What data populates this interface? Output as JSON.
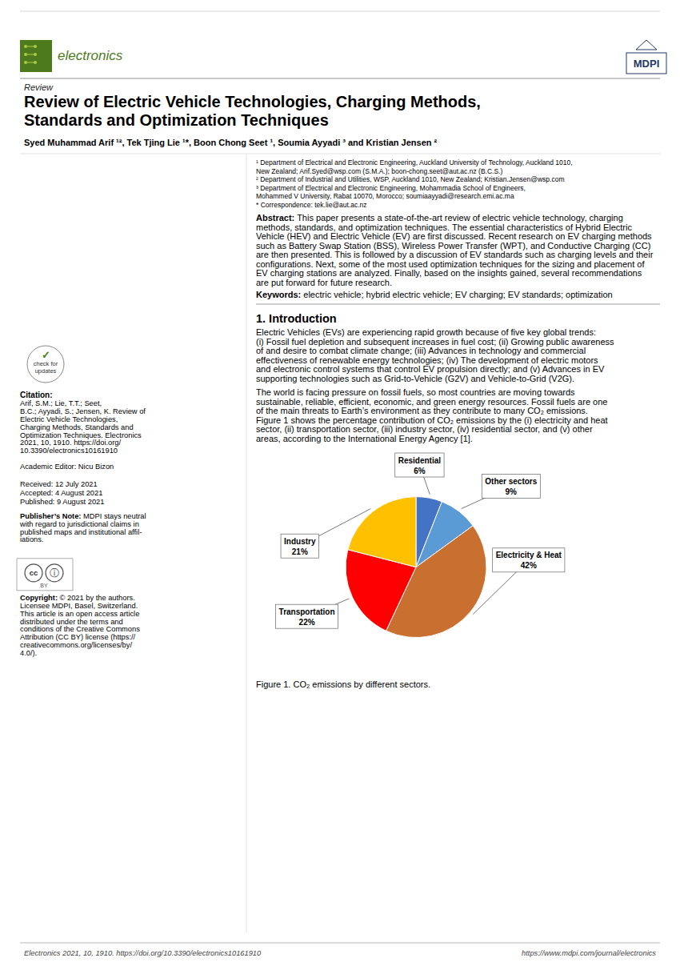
{
  "page": {
    "title_line1": "Review of Electric Vehicle Technologies, Charging Methods,",
    "title_line2": "Standards and Optimization Techniques",
    "review_label": "Review",
    "authors": "Syed Muhammad Arif ¹², Tek Tjing Lie ¹*, Boon Chong Seet ¹, Soumia Ayyadi ³ and Kristian Jensen ²",
    "aff_lines": [
      "¹   Department of Electrical and Electronic Engineering, Auckland University of Technology, Auckland 1010,",
      "     New Zealand; Arif.Syed@wsp.com (S.M.A.); boon-chong.seet@aut.ac.nz (B.C.S.)",
      "²   Department of Industrial and Utilities, WSP, Auckland 1010, New Zealand; Kristian.Jensen@wsp.com",
      "³   Department of Electrical and Electronic Engineering, Mohammadia School of Engineers,",
      "     Mohammed V University, Rabat 10070, Morocco; soumiaayyadi@research.emi.ac.ma",
      "*   Correspondence: tek.lie@aut.ac.nz"
    ],
    "abstract_lines": [
      "Abstract:  This paper presents a state-of-the-art review of electric vehicle technology, charging",
      "methods, standards, and optimization techniques. The essential characteristics of Hybrid Electric",
      "Vehicle (HEV) and Electric Vehicle (EV) are first discussed. Recent research on EV charging methods",
      "such as Battery Swap Station (BSS), Wireless Power Transfer (WPT), and Conductive Charging (CC)",
      "are then presented. This is followed by a discussion of EV standards such as charging levels and their",
      "configurations. Next, some of the most used optimization techniques for the sizing and placement of",
      "EV charging stations are analyzed. Finally, based on the insights gained, several recommendations",
      "are put forward for future research."
    ],
    "keywords_line": "Keywords:  electric vehicle; hybrid electric vehicle; EV charging; EV standards; optimization",
    "intro_title": "1. Introduction",
    "intro_para1": [
      "    Electric Vehicles (EVs) are experiencing rapid growth because of five key global trends:",
      "(i) Fossil fuel depletion and subsequent increases in fuel cost; (ii) Growing public awareness",
      "of and desire to combat climate change; (iii) Advances in technology and commercial",
      "effectiveness of renewable energy technologies; (iv) The development of electric motors",
      "and electronic control systems that control EV propulsion directly; and (v) Advances in EV",
      "supporting technologies such as Grid-to-Vehicle (G2V) and Vehicle-to-Grid (V2G)."
    ],
    "intro_para2": [
      "    The world is facing pressure on fossil fuels, so most countries are moving towards",
      "sustainable, reliable, efficient, economic, and green energy resources. Fossil fuels are one",
      "of the main threats to Earth’s environment as they contribute to many CO₂ emissions.",
      "Figure 1 shows the percentage contribution of CO₂ emissions by the (i) electricity and heat",
      "sector, (ii) transportation sector, (iii) industry sector, (iv) residential sector, and (v) other",
      "areas, according to the International Energy Agency [1]."
    ],
    "cite_label": "Citation:",
    "cite_lines": [
      "Arif, S.M.; Lie, T.T.; Seet,",
      "B.C.; Ayyadi, S.; Jensen, K. Review of",
      "Electric Vehicle Technologies,",
      "Charging Methods, Standards and",
      "Optimization Techniques. Electronics",
      "2021, 10, 1910. https://doi.org/",
      "10.3390/electronics10161910"
    ],
    "academic_editor": "Academic Editor: Nicu Bizon",
    "received": "Received: 12 July 2021",
    "accepted": "Accepted: 4 August 2021",
    "published": "Published: 9 August 2021",
    "pub_note_label": "Publisher’s Note:",
    "pub_note_lines": [
      " MDPI stays neutral",
      "with regard to jurisdictional claims in",
      "published maps and institutional affil-",
      "iations."
    ],
    "copy_label": "Copyright:",
    "copy_lines": [
      " © 2021 by the authors.",
      "Licensee MDPI, Basel, Switzerland.",
      "This article is an open access article",
      "distributed under the terms and",
      "conditions of the Creative Commons",
      "Attribution (CC BY) license (https://",
      "creativecommons.org/licenses/by/",
      "4.0/)."
    ],
    "footer_left": "Electronics 2021, 10, 1910. https://doi.org/10.3390/electronics10161910",
    "footer_right": "https://www.mdpi.com/journal/electronics",
    "journal_name": "electronics",
    "publisher_logo": "MDPI",
    "update_badge": {
      "icon": "✓",
      "lines": [
        "check for",
        "updates"
      ]
    },
    "license_badge": {
      "left": "cc",
      "right": "ⓘ",
      "bottom": "BY"
    },
    "green_color": "#4E7A1E",
    "mdpi_blue": "#1F3864"
  },
  "chart_data": {
    "type": "pie",
    "title": "Figure 1. CO₂ emissions by different sectors.",
    "categories": [
      "Residential",
      "Other sectors",
      "Electricity & Heat",
      "Transportation",
      "Industry"
    ],
    "values": [
      6,
      9,
      42,
      22,
      21
    ],
    "value_labels": [
      "6%",
      "9%",
      "42%",
      "22%",
      "21%"
    ],
    "colors": [
      "#4472C4",
      "#5B9BD5",
      "#C97030",
      "#FF0000",
      "#FFC000"
    ],
    "data_labels": true
  }
}
